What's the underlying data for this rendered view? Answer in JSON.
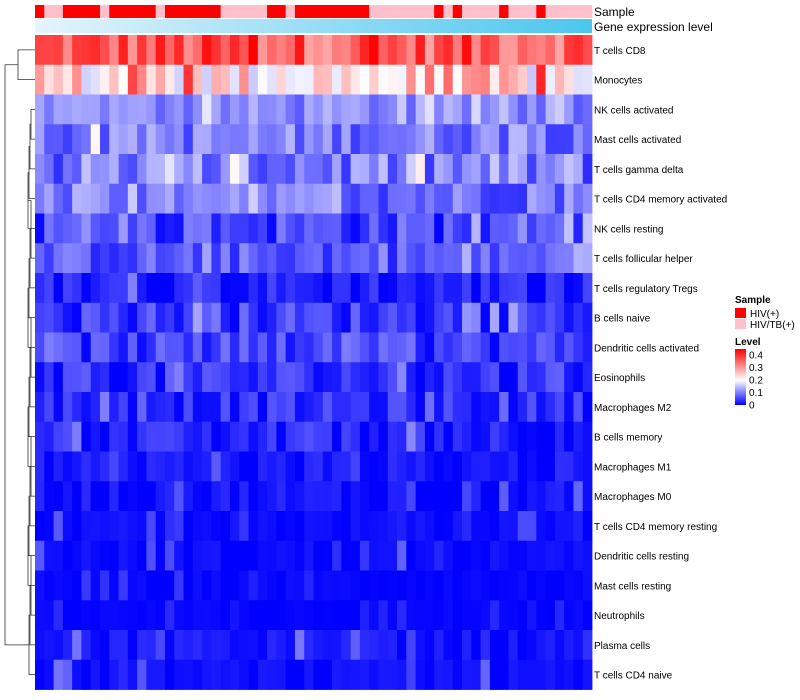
{
  "chart_data": {
    "type": "heatmap",
    "title": "",
    "annotation_tracks": [
      "Sample",
      "Gene expression level"
    ],
    "sample_groups": {
      "HIV(+)": "#ff0000",
      "HIV/TB(+)": "#ffc0cb"
    },
    "sample_annotation": [
      "HIV(+)",
      "HIV/TB(+)",
      "HIV/TB(+)",
      "HIV(+)",
      "HIV(+)",
      "HIV(+)",
      "HIV(+)",
      "HIV/TB(+)",
      "HIV(+)",
      "HIV(+)",
      "HIV(+)",
      "HIV(+)",
      "HIV(+)",
      "HIV/TB(+)",
      "HIV(+)",
      "HIV(+)",
      "HIV(+)",
      "HIV(+)",
      "HIV(+)",
      "HIV(+)",
      "HIV/TB(+)",
      "HIV/TB(+)",
      "HIV/TB(+)",
      "HIV/TB(+)",
      "HIV/TB(+)",
      "HIV(+)",
      "HIV(+)",
      "HIV/TB(+)",
      "HIV(+)",
      "HIV(+)",
      "HIV(+)",
      "HIV(+)",
      "HIV(+)",
      "HIV(+)",
      "HIV(+)",
      "HIV(+)",
      "HIV/TB(+)",
      "HIV/TB(+)",
      "HIV/TB(+)",
      "HIV/TB(+)",
      "HIV/TB(+)",
      "HIV/TB(+)",
      "HIV/TB(+)",
      "HIV(+)",
      "HIV/TB(+)",
      "HIV(+)",
      "HIV/TB(+)",
      "HIV/TB(+)",
      "HIV/TB(+)",
      "HIV/TB(+)",
      "HIV(+)",
      "HIV/TB(+)",
      "HIV/TB(+)",
      "HIV/TB(+)",
      "HIV(+)",
      "HIV/TB(+)",
      "HIV/TB(+)",
      "HIV/TB(+)",
      "HIV/TB(+)",
      "HIV/TB(+)"
    ],
    "gene_expression_gradient": [
      "#e6f4fb",
      "#4cc6ee"
    ],
    "rows": [
      "T cells CD8",
      "Monocytes",
      "NK cells activated",
      "Mast cells activated",
      "T cells gamma delta",
      "T cells CD4 memory activated",
      "NK cells resting",
      "T cells follicular helper",
      "T cells regulatory  Tregs",
      "B cells naive",
      "Dendritic cells activated",
      "Eosinophils",
      "Macrophages M2",
      "B cells memory",
      "Macrophages M1",
      "Macrophages M0",
      "T cells CD4 memory resting",
      "Dendritic cells resting",
      "Mast cells resting",
      "Neutrophils",
      "Plasma cells",
      "T cells CD4 naive"
    ],
    "n_columns": 60,
    "row_levels": [
      {
        "base": 0.33,
        "spread": 0.06,
        "hot": 0.45
      },
      {
        "base": 0.22,
        "spread": 0.08,
        "hot": 0.45
      },
      {
        "base": 0.1,
        "spread": 0.04,
        "hot": 0.18
      },
      {
        "base": 0.09,
        "spread": 0.05,
        "hot": 0.22
      },
      {
        "base": 0.09,
        "spread": 0.07,
        "hot": 0.22
      },
      {
        "base": 0.08,
        "spread": 0.05,
        "hot": 0.16
      },
      {
        "base": 0.05,
        "spread": 0.05,
        "hot": 0.16
      },
      {
        "base": 0.06,
        "spread": 0.04,
        "hot": 0.14
      },
      {
        "base": 0.02,
        "spread": 0.03,
        "hot": 0.1
      },
      {
        "base": 0.04,
        "spread": 0.04,
        "hot": 0.13
      },
      {
        "base": 0.04,
        "spread": 0.04,
        "hot": 0.1
      },
      {
        "base": 0.03,
        "spread": 0.04,
        "hot": 0.12
      },
      {
        "base": 0.03,
        "spread": 0.03,
        "hot": 0.1
      },
      {
        "base": 0.02,
        "spread": 0.03,
        "hot": 0.1
      },
      {
        "base": 0.01,
        "spread": 0.02,
        "hot": 0.08
      },
      {
        "base": 0.01,
        "spread": 0.02,
        "hot": 0.08
      },
      {
        "base": 0.005,
        "spread": 0.01,
        "hot": 0.07
      },
      {
        "base": 0.005,
        "spread": 0.01,
        "hot": 0.07
      },
      {
        "base": 0.003,
        "spread": 0.006,
        "hot": 0.04
      },
      {
        "base": 0.002,
        "spread": 0.004,
        "hot": 0.03
      },
      {
        "base": 0.01,
        "spread": 0.02,
        "hot": 0.09
      },
      {
        "base": 0.006,
        "spread": 0.01,
        "hot": 0.09
      }
    ],
    "value_range": [
      0,
      0.45
    ],
    "colorscale": {
      "low": "#0000ff",
      "mid": "#ffffff",
      "high": "#ff0000",
      "mid_value": 0.2
    },
    "legend": {
      "sample_title": "Sample",
      "sample_entries": [
        "HIV(+)",
        "HIV/TB(+)"
      ],
      "level_title": "Level",
      "level_ticks": [
        "0.4",
        "0.3",
        "0.2",
        "0.1",
        "0"
      ],
      "level_tick_values": [
        0.4,
        0.3,
        0.2,
        0.1,
        0
      ],
      "placement": "right"
    },
    "dendrogram": "rows"
  }
}
